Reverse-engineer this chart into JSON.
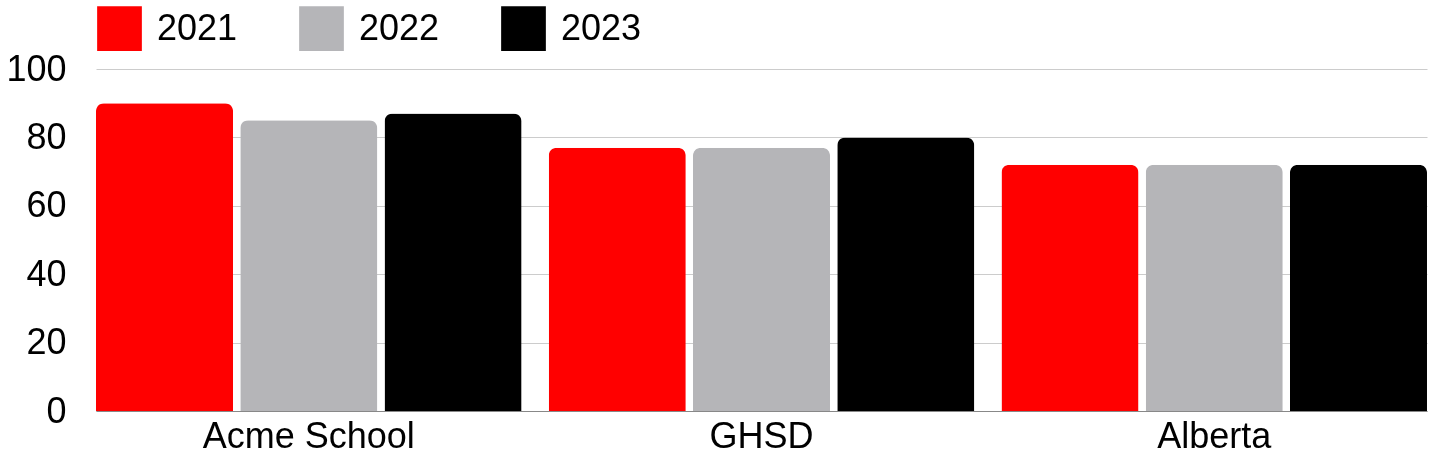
{
  "chart_data": {
    "type": "bar",
    "categories": [
      "Acme School",
      "GHSD",
      "Alberta"
    ],
    "series": [
      {
        "name": "2021",
        "color": "#ff0000",
        "values": [
          90,
          77,
          72
        ]
      },
      {
        "name": "2022",
        "color": "#b5b5b8",
        "values": [
          85,
          77,
          72
        ]
      },
      {
        "name": "2023",
        "color": "#000000",
        "values": [
          87,
          80,
          72
        ]
      }
    ],
    "ylim": [
      0,
      100
    ],
    "yticks": [
      0,
      20,
      40,
      60,
      80,
      100
    ],
    "grid": "y",
    "legend": "top"
  }
}
